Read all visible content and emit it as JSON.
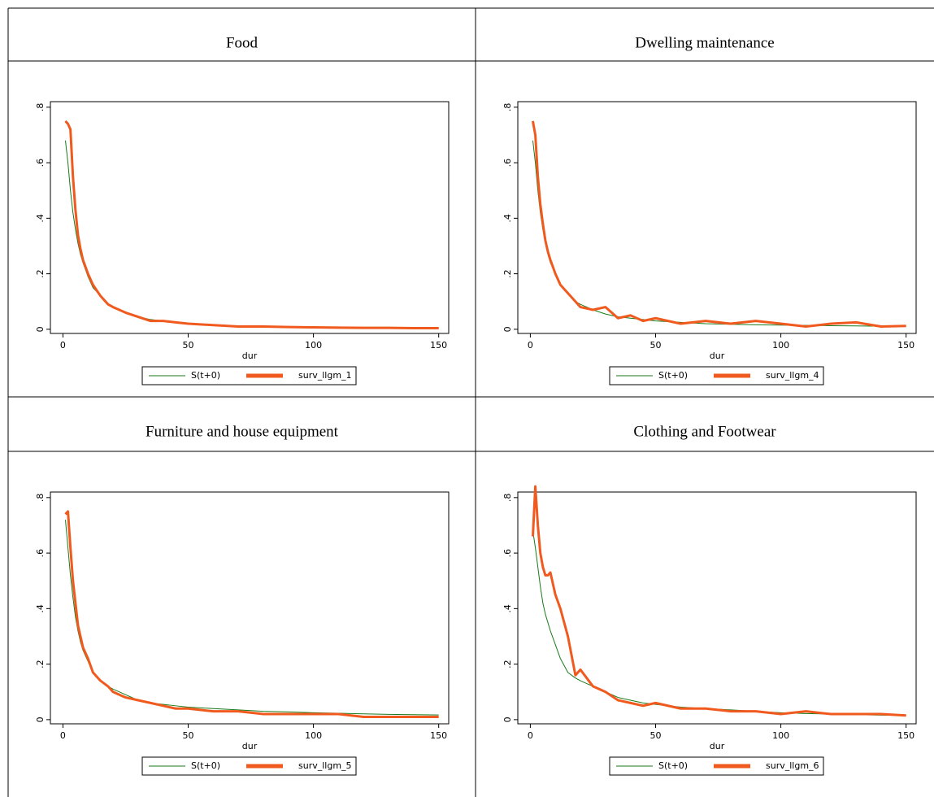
{
  "chart_data": [
    {
      "type": "line",
      "title": "Food",
      "x_label": "dur",
      "x": [
        1,
        2,
        3,
        4,
        5,
        6,
        7,
        8,
        10,
        12,
        15,
        18,
        20,
        25,
        30,
        35,
        40,
        45,
        50,
        60,
        70,
        80,
        90,
        100,
        110,
        120,
        130,
        140,
        150
      ],
      "series": [
        {
          "name": "S(t+0)",
          "color": "#1a7a1a",
          "values": [
            0.68,
            0.6,
            0.5,
            0.42,
            0.36,
            0.31,
            0.27,
            0.24,
            0.19,
            0.15,
            0.12,
            0.09,
            0.08,
            0.06,
            0.045,
            0.035,
            0.03,
            0.025,
            0.02,
            0.015,
            0.012,
            0.01,
            0.008,
            0.007,
            0.006,
            0.005,
            0.005,
            0.004,
            0.004
          ]
        },
        {
          "name": "surv_llgm_1",
          "color": "#f05a1e",
          "values": [
            0.75,
            0.74,
            0.72,
            0.55,
            0.43,
            0.34,
            0.29,
            0.25,
            0.2,
            0.16,
            0.12,
            0.09,
            0.08,
            0.06,
            0.045,
            0.03,
            0.03,
            0.025,
            0.02,
            0.015,
            0.01,
            0.01,
            0.008,
            0.007,
            0.006,
            0.005,
            0.005,
            0.004,
            0.004
          ]
        }
      ],
      "xlim": [
        -5,
        154
      ],
      "xticks": [
        0,
        50,
        100,
        150
      ],
      "ylim": [
        -0.015,
        0.82
      ],
      "yticks": [
        0,
        {
          "value": 0.2,
          "label": ".2"
        },
        {
          "value": 0.4,
          "label": ".4"
        },
        {
          "value": 0.6,
          "label": ".6"
        },
        {
          "value": 0.8,
          "label": ".8"
        }
      ]
    },
    {
      "type": "line",
      "title": "Dwelling maintenance",
      "x_label": "dur",
      "x": [
        1,
        2,
        3,
        4,
        5,
        6,
        7,
        8,
        10,
        12,
        15,
        18,
        20,
        25,
        30,
        35,
        40,
        45,
        50,
        60,
        70,
        80,
        90,
        100,
        110,
        120,
        130,
        140,
        150
      ],
      "series": [
        {
          "name": "S(t+0)",
          "color": "#1a7a1a",
          "values": [
            0.68,
            0.6,
            0.5,
            0.42,
            0.36,
            0.31,
            0.27,
            0.24,
            0.2,
            0.16,
            0.13,
            0.1,
            0.09,
            0.07,
            0.055,
            0.045,
            0.04,
            0.035,
            0.03,
            0.025,
            0.02,
            0.018,
            0.016,
            0.015,
            0.014,
            0.013,
            0.012,
            0.011,
            0.01
          ]
        },
        {
          "name": "surv_llgm_4",
          "color": "#f05a1e",
          "values": [
            0.75,
            0.7,
            0.55,
            0.45,
            0.38,
            0.32,
            0.28,
            0.25,
            0.2,
            0.16,
            0.13,
            0.1,
            0.08,
            0.07,
            0.08,
            0.04,
            0.05,
            0.03,
            0.04,
            0.02,
            0.03,
            0.02,
            0.03,
            0.02,
            0.01,
            0.02,
            0.025,
            0.01,
            0.012
          ]
        }
      ],
      "xlim": [
        -5,
        154
      ],
      "xticks": [
        0,
        50,
        100,
        150
      ],
      "ylim": [
        -0.015,
        0.82
      ],
      "yticks": [
        0,
        {
          "value": 0.2,
          "label": ".2"
        },
        {
          "value": 0.4,
          "label": ".4"
        },
        {
          "value": 0.6,
          "label": ".6"
        },
        {
          "value": 0.8,
          "label": ".8"
        }
      ]
    },
    {
      "type": "line",
      "title": "Furniture and house equipment",
      "x_label": "dur",
      "x": [
        1,
        2,
        3,
        4,
        5,
        6,
        7,
        8,
        10,
        12,
        15,
        18,
        20,
        25,
        30,
        35,
        40,
        45,
        50,
        60,
        70,
        80,
        90,
        100,
        110,
        120,
        130,
        140,
        150
      ],
      "series": [
        {
          "name": "S(t+0)",
          "color": "#1a7a1a",
          "values": [
            0.72,
            0.62,
            0.52,
            0.44,
            0.37,
            0.32,
            0.28,
            0.25,
            0.21,
            0.17,
            0.14,
            0.12,
            0.11,
            0.09,
            0.07,
            0.06,
            0.055,
            0.05,
            0.045,
            0.04,
            0.035,
            0.03,
            0.028,
            0.025,
            0.023,
            0.021,
            0.019,
            0.018,
            0.017
          ]
        },
        {
          "name": "surv_llgm_5",
          "color": "#f05a1e",
          "values": [
            0.74,
            0.75,
            0.62,
            0.5,
            0.42,
            0.34,
            0.3,
            0.26,
            0.22,
            0.17,
            0.14,
            0.12,
            0.1,
            0.08,
            0.07,
            0.06,
            0.05,
            0.04,
            0.04,
            0.03,
            0.03,
            0.02,
            0.02,
            0.02,
            0.02,
            0.01,
            0.01,
            0.01,
            0.01
          ]
        }
      ],
      "xlim": [
        -5,
        154
      ],
      "xticks": [
        0,
        50,
        100,
        150
      ],
      "ylim": [
        -0.015,
        0.82
      ],
      "yticks": [
        0,
        {
          "value": 0.2,
          "label": ".2"
        },
        {
          "value": 0.4,
          "label": ".4"
        },
        {
          "value": 0.6,
          "label": ".6"
        },
        {
          "value": 0.8,
          "label": ".8"
        }
      ]
    },
    {
      "type": "line",
      "title": "Clothing and Footwear",
      "x_label": "dur",
      "x": [
        1,
        2,
        3,
        4,
        5,
        6,
        7,
        8,
        10,
        12,
        15,
        18,
        20,
        25,
        30,
        35,
        40,
        45,
        50,
        60,
        70,
        80,
        90,
        100,
        110,
        120,
        130,
        140,
        150
      ],
      "series": [
        {
          "name": "S(t+0)",
          "color": "#1a7a1a",
          "values": [
            0.68,
            0.62,
            0.55,
            0.48,
            0.42,
            0.38,
            0.35,
            0.32,
            0.27,
            0.22,
            0.17,
            0.15,
            0.14,
            0.12,
            0.1,
            0.08,
            0.07,
            0.06,
            0.055,
            0.045,
            0.04,
            0.035,
            0.03,
            0.025,
            0.022,
            0.02,
            0.018,
            0.016,
            0.015
          ]
        },
        {
          "name": "surv_llgm_6",
          "color": "#f05a1e",
          "values": [
            0.66,
            0.84,
            0.7,
            0.6,
            0.55,
            0.52,
            0.52,
            0.53,
            0.45,
            0.4,
            0.3,
            0.16,
            0.18,
            0.12,
            0.1,
            0.07,
            0.06,
            0.05,
            0.06,
            0.04,
            0.04,
            0.03,
            0.03,
            0.02,
            0.03,
            0.02,
            0.02,
            0.02,
            0.015
          ]
        }
      ],
      "xlim": [
        -5,
        154
      ],
      "xticks": [
        0,
        50,
        100,
        150
      ],
      "ylim": [
        -0.015,
        0.82
      ],
      "yticks": [
        0,
        {
          "value": 0.2,
          "label": ".2"
        },
        {
          "value": 0.4,
          "label": ".4"
        },
        {
          "value": 0.6,
          "label": ".6"
        },
        {
          "value": 0.8,
          "label": ".8"
        }
      ]
    }
  ]
}
